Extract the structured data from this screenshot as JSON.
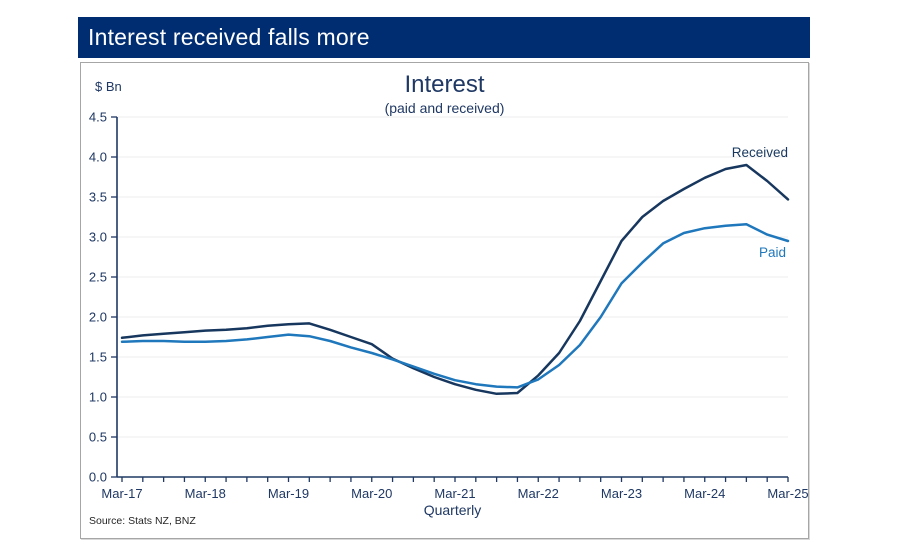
{
  "header": {
    "title": "Interest received falls more"
  },
  "colors": {
    "header_bg": "#002d72",
    "received_line": "#17375e",
    "paid_line": "#1f77bc",
    "axis": "#1f3864",
    "grid": "#ededed",
    "tick_label": "#1f3864",
    "source_text": "#262626"
  },
  "chart_data": {
    "type": "line",
    "title": "Interest",
    "subtitle": "(paid and received)",
    "unit_label": "$ Bn",
    "xlabel": "Quarterly",
    "source": "Source: Stats NZ, BNZ",
    "ylim": [
      0,
      4.5
    ],
    "ytick_labels": [
      "0.0",
      "0.5",
      "1.0",
      "1.5",
      "2.0",
      "2.5",
      "3.0",
      "3.5",
      "4.0",
      "4.5"
    ],
    "grid": "horizontal",
    "legend_position": "line-end-labels",
    "x": [
      "Mar-17",
      "Jun-17",
      "Sep-17",
      "Dec-17",
      "Mar-18",
      "Jun-18",
      "Sep-18",
      "Dec-18",
      "Mar-19",
      "Jun-19",
      "Sep-19",
      "Dec-19",
      "Mar-20",
      "Jun-20",
      "Sep-20",
      "Dec-20",
      "Mar-21",
      "Jun-21",
      "Sep-21",
      "Dec-21",
      "Mar-22",
      "Jun-22",
      "Sep-22",
      "Dec-22",
      "Mar-23",
      "Jun-23",
      "Sep-23",
      "Dec-23",
      "Mar-24",
      "Jun-24",
      "Sep-24",
      "Dec-24",
      "Mar-25"
    ],
    "xtick_labels": [
      "Mar-17",
      "Mar-18",
      "Mar-19",
      "Mar-20",
      "Mar-21",
      "Mar-22",
      "Mar-23",
      "Mar-24",
      "Mar-25"
    ],
    "series": [
      {
        "name": "Received",
        "values": [
          1.74,
          1.77,
          1.79,
          1.81,
          1.83,
          1.84,
          1.86,
          1.89,
          1.91,
          1.92,
          1.84,
          1.75,
          1.66,
          1.48,
          1.36,
          1.25,
          1.16,
          1.09,
          1.04,
          1.05,
          1.27,
          1.55,
          1.95,
          2.45,
          2.95,
          3.25,
          3.45,
          3.6,
          3.74,
          3.85,
          3.9,
          3.7,
          3.47
        ]
      },
      {
        "name": "Paid",
        "values": [
          1.69,
          1.7,
          1.7,
          1.69,
          1.69,
          1.7,
          1.72,
          1.75,
          1.78,
          1.76,
          1.7,
          1.62,
          1.55,
          1.47,
          1.38,
          1.29,
          1.21,
          1.16,
          1.13,
          1.12,
          1.22,
          1.4,
          1.65,
          2.0,
          2.42,
          2.68,
          2.92,
          3.05,
          3.11,
          3.14,
          3.16,
          3.03,
          2.95
        ]
      }
    ]
  }
}
